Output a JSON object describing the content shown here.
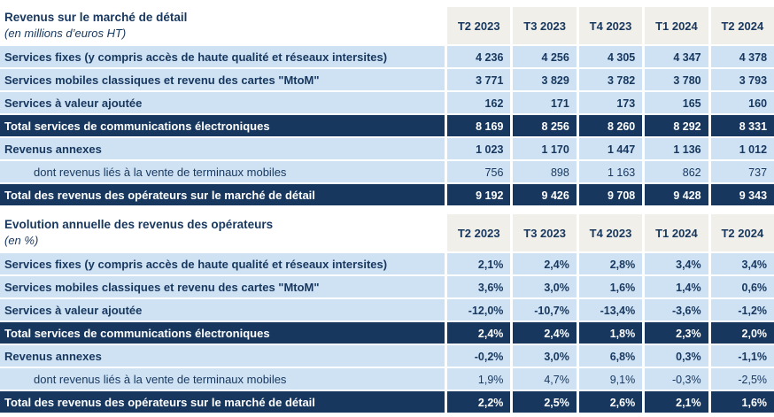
{
  "colors": {
    "navy": "#17375e",
    "light_blue": "#cee2f4",
    "header_bg": "#f1efe9",
    "total_text": "#ffffff"
  },
  "columns": [
    "T2 2023",
    "T3 2023",
    "T4 2023",
    "T1 2024",
    "T2 2024"
  ],
  "tables": [
    {
      "title": "Revenus sur le marché de détail",
      "subtitle": "(en millions d’euros HT)",
      "rows": [
        {
          "type": "normal",
          "label": "Services fixes (y compris accès de haute qualité et réseaux intersites)",
          "values": [
            "4 236",
            "4 256",
            "4 305",
            "4 347",
            "4 378"
          ]
        },
        {
          "type": "normal",
          "label": "Services mobiles classiques et revenu des cartes \"MtoM\"",
          "values": [
            "3 771",
            "3 829",
            "3 782",
            "3 780",
            "3 793"
          ]
        },
        {
          "type": "normal",
          "label": "Services à valeur ajoutée",
          "values": [
            "162",
            "171",
            "173",
            "165",
            "160"
          ]
        },
        {
          "type": "total",
          "label": "Total services de communications électroniques",
          "values": [
            "8 169",
            "8 256",
            "8 260",
            "8 292",
            "8 331"
          ]
        },
        {
          "type": "normal",
          "label": "Revenus annexes",
          "values": [
            "1 023",
            "1 170",
            "1 447",
            "1 136",
            "1 012"
          ]
        },
        {
          "type": "sub",
          "label": "dont revenus liés à la vente de terminaux mobiles",
          "values": [
            "756",
            "898",
            "1 163",
            "862",
            "737"
          ]
        },
        {
          "type": "total",
          "label": "Total des revenus des opérateurs sur le marché de détail",
          "values": [
            "9 192",
            "9 426",
            "9 708",
            "9 428",
            "9 343"
          ]
        }
      ]
    },
    {
      "title": "Evolution annuelle des revenus des opérateurs",
      "subtitle": "(en %)",
      "rows": [
        {
          "type": "normal",
          "label": "Services fixes (y compris accès de haute qualité et réseaux intersites)",
          "values": [
            "2,1%",
            "2,4%",
            "2,8%",
            "3,4%",
            "3,4%"
          ]
        },
        {
          "type": "normal",
          "label": "Services mobiles classiques et revenu des cartes \"MtoM\"",
          "values": [
            "3,6%",
            "3,0%",
            "1,6%",
            "1,4%",
            "0,6%"
          ]
        },
        {
          "type": "normal",
          "label": "Services à valeur ajoutée",
          "values": [
            "-12,0%",
            "-10,7%",
            "-13,4%",
            "-3,6%",
            "-1,2%"
          ]
        },
        {
          "type": "total",
          "label": "Total services de communications électroniques",
          "values": [
            "2,4%",
            "2,4%",
            "1,8%",
            "2,3%",
            "2,0%"
          ]
        },
        {
          "type": "normal",
          "label": "Revenus annexes",
          "values": [
            "-0,2%",
            "3,0%",
            "6,8%",
            "0,3%",
            "-1,1%"
          ]
        },
        {
          "type": "sub",
          "label": "dont revenus liés à la vente de terminaux mobiles",
          "values": [
            "1,9%",
            "4,7%",
            "9,1%",
            "-0,3%",
            "-2,5%"
          ]
        },
        {
          "type": "total",
          "label": "Total des revenus des opérateurs sur le marché de détail",
          "values": [
            "2,2%",
            "2,5%",
            "2,6%",
            "2,1%",
            "1,6%"
          ]
        }
      ]
    }
  ]
}
